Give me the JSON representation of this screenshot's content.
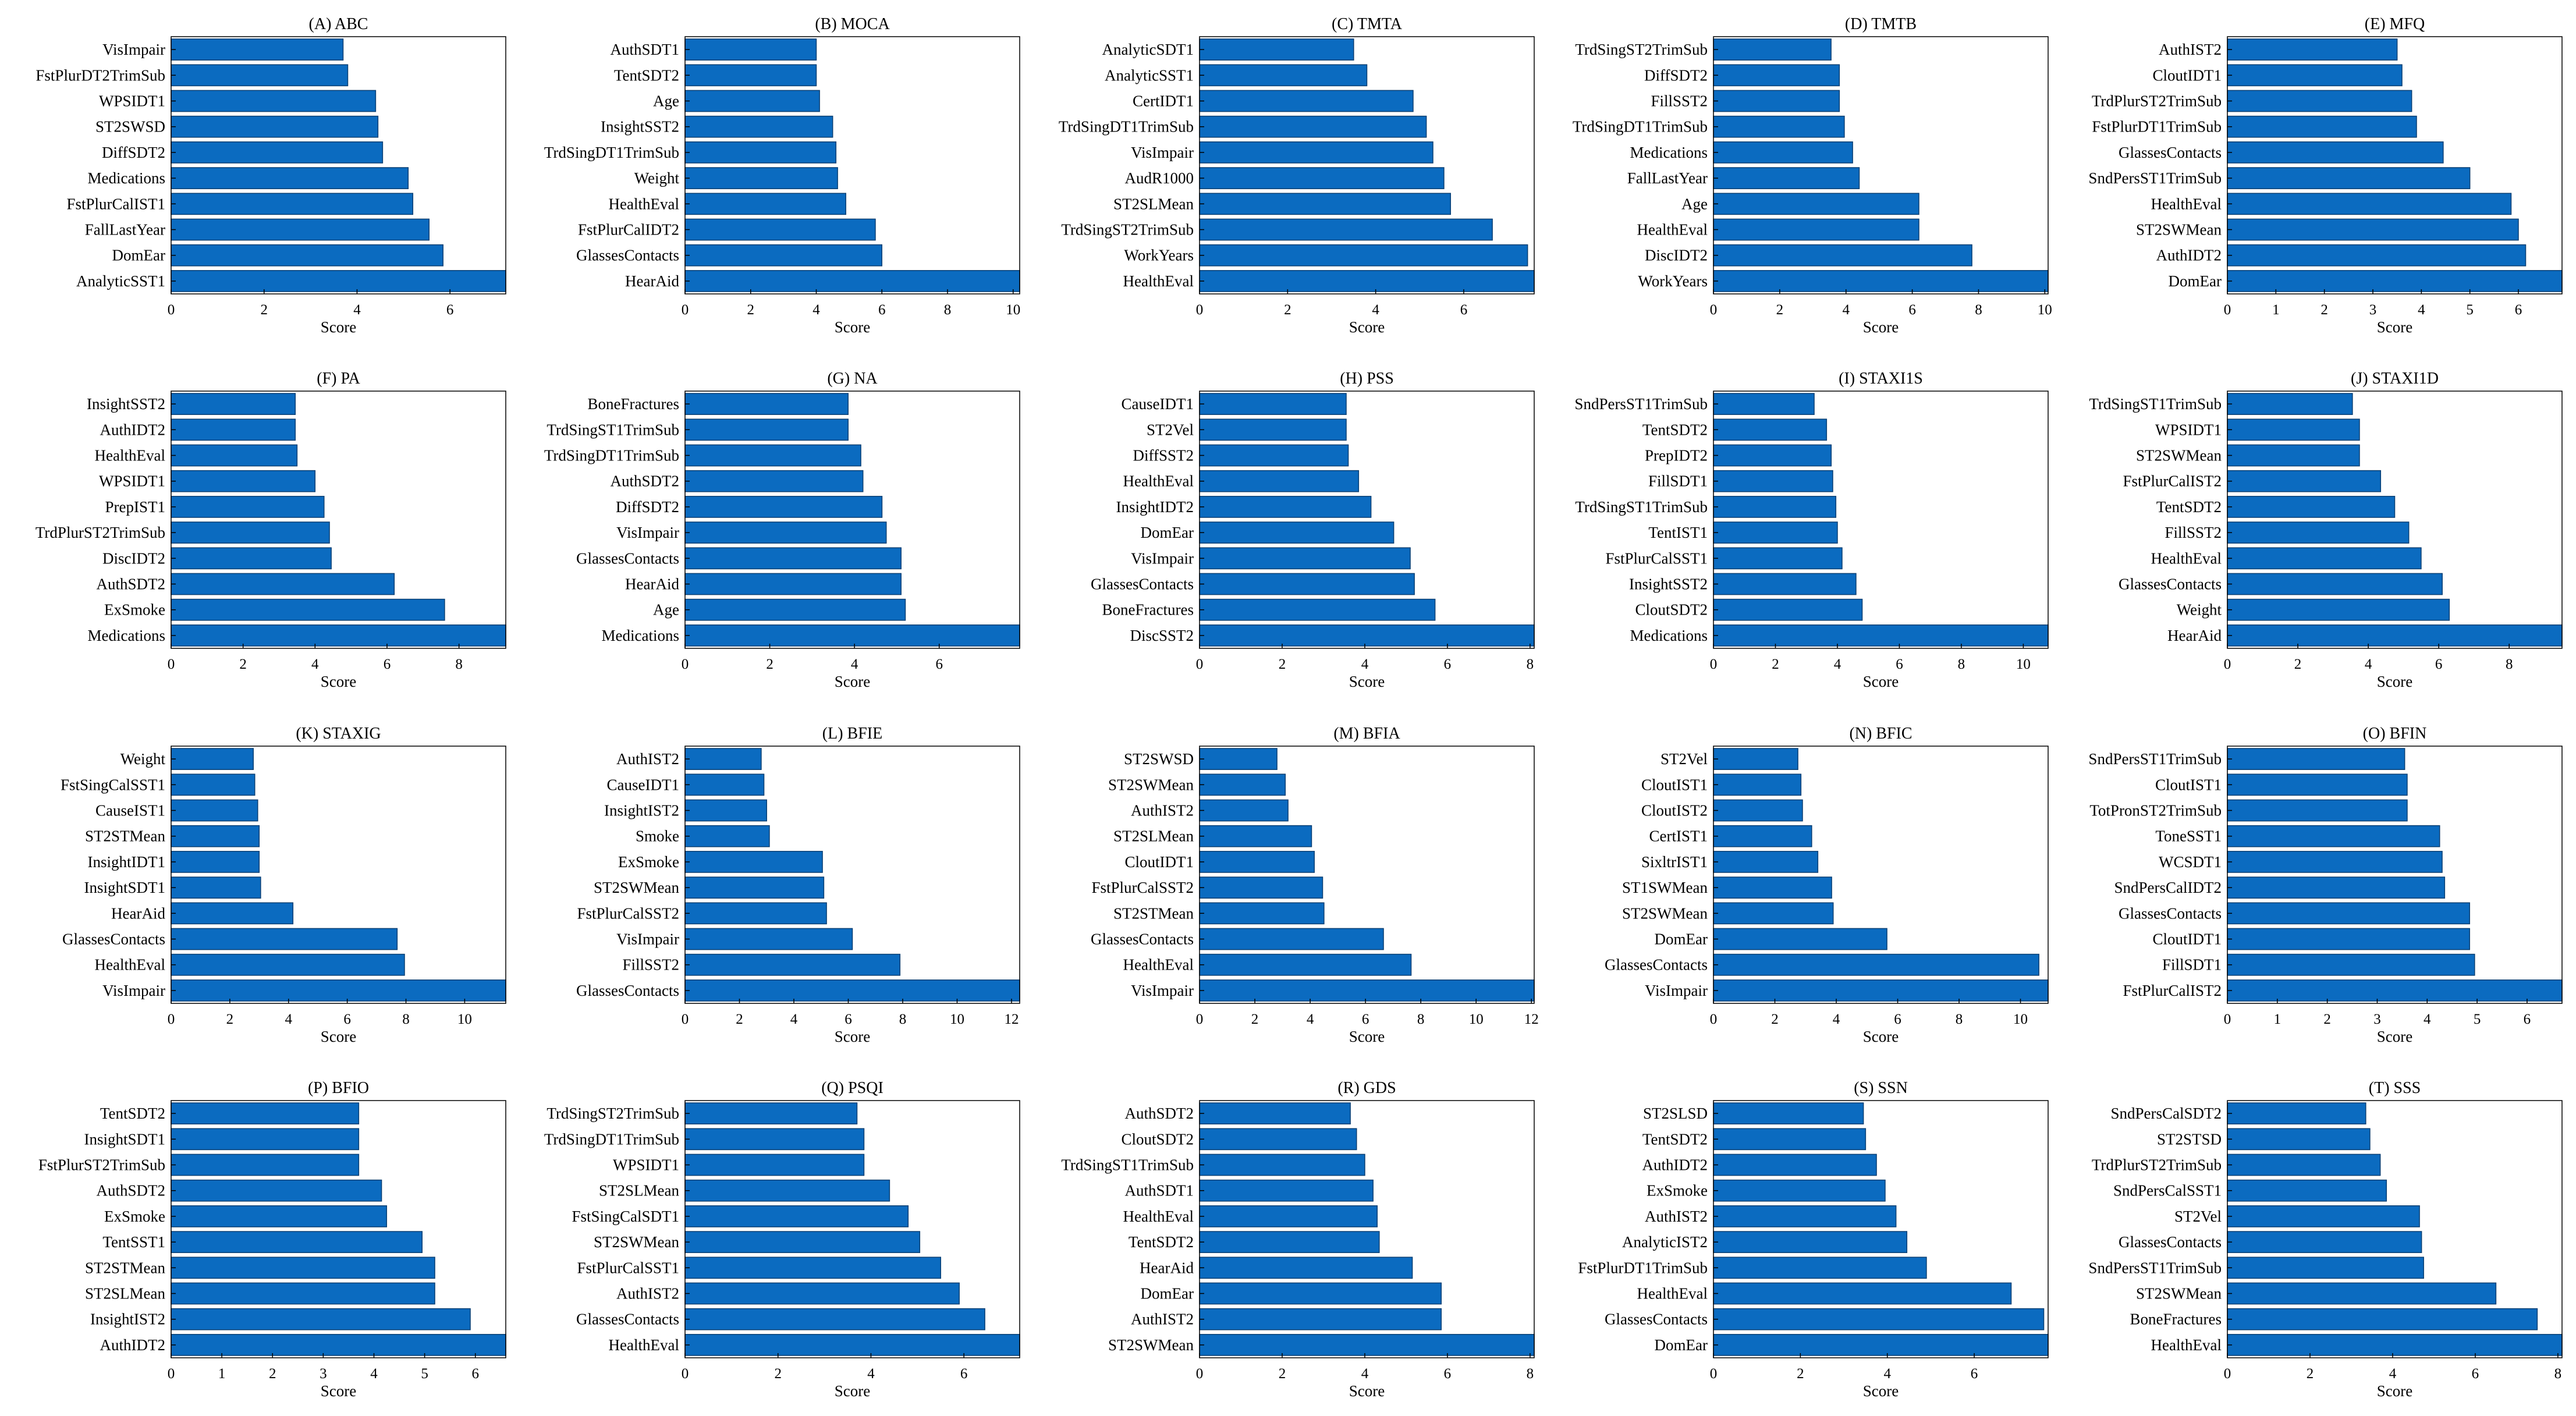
{
  "chart_data": [
    {
      "title": "(A) ABC",
      "type": "bar",
      "orientation": "horizontal",
      "xlabel": "Score",
      "xlim": [
        0,
        7.2
      ],
      "xticks": [
        0,
        2,
        4,
        6
      ],
      "categories": [
        "AnalyticSST1",
        "DomEar",
        "FallLastYear",
        "FstPlurCalIST1",
        "Medications",
        "DiffSDT2",
        "ST2SWSD",
        "WPSIDT1",
        "FstPlurDT2TrimSub",
        "VisImpair"
      ],
      "values": [
        7.2,
        5.85,
        5.55,
        5.2,
        5.1,
        4.55,
        4.45,
        4.4,
        3.8,
        3.7
      ]
    },
    {
      "title": "(B) MOCA",
      "type": "bar",
      "orientation": "horizontal",
      "xlabel": "Score",
      "xlim": [
        0,
        10.2
      ],
      "xticks": [
        0,
        2,
        4,
        6,
        8,
        10
      ],
      "categories": [
        "HearAid",
        "GlassesContacts",
        "FstPlurCalIDT2",
        "HealthEval",
        "Weight",
        "TrdSingDT1TrimSub",
        "InsightSST2",
        "Age",
        "TentSDT2",
        "AuthSDT1"
      ],
      "values": [
        10.2,
        6.0,
        5.8,
        4.9,
        4.65,
        4.6,
        4.5,
        4.1,
        4.0,
        4.0
      ]
    },
    {
      "title": "(C) TMTA",
      "type": "bar",
      "orientation": "horizontal",
      "xlabel": "Score",
      "xlim": [
        0,
        7.6
      ],
      "xticks": [
        0,
        2,
        4,
        6
      ],
      "categories": [
        "HealthEval",
        "WorkYears",
        "TrdSingST2TrimSub",
        "ST2SLMean",
        "AudR1000",
        "VisImpair",
        "TrdSingDT1TrimSub",
        "CertIDT1",
        "AnalyticSST1",
        "AnalyticSDT1"
      ],
      "values": [
        7.6,
        7.45,
        6.65,
        5.7,
        5.55,
        5.3,
        5.15,
        4.85,
        3.8,
        3.5
      ]
    },
    {
      "title": "(D) TMTB",
      "type": "bar",
      "orientation": "horizontal",
      "xlabel": "Score",
      "xlim": [
        0,
        10.1
      ],
      "xticks": [
        0,
        2,
        4,
        6,
        8,
        10
      ],
      "categories": [
        "WorkYears",
        "DiscIDT2",
        "HealthEval",
        "Age",
        "FallLastYear",
        "Medications",
        "TrdSingDT1TrimSub",
        "FillSST2",
        "DiffSDT2",
        "TrdSingST2TrimSub"
      ],
      "values": [
        10.1,
        7.8,
        6.2,
        6.2,
        4.4,
        4.2,
        3.95,
        3.8,
        3.8,
        3.55
      ]
    },
    {
      "title": "(E) MFQ",
      "type": "bar",
      "orientation": "horizontal",
      "xlabel": "Score",
      "xlim": [
        0,
        6.9
      ],
      "xticks": [
        0,
        1,
        2,
        3,
        4,
        5,
        6
      ],
      "categories": [
        "DomEar",
        "AuthIDT2",
        "ST2SWMean",
        "HealthEval",
        "SndPersST1TrimSub",
        "GlassesContacts",
        "FstPlurDT1TrimSub",
        "TrdPlurST2TrimSub",
        "CloutIDT1",
        "AuthIST2"
      ],
      "values": [
        6.9,
        6.15,
        6.0,
        5.85,
        5.0,
        4.45,
        3.9,
        3.8,
        3.6,
        3.5
      ]
    },
    {
      "title": "(F) PA",
      "type": "bar",
      "orientation": "horizontal",
      "xlabel": "Score",
      "xlim": [
        0,
        9.3
      ],
      "xticks": [
        0,
        2,
        4,
        6,
        8
      ],
      "categories": [
        "Medications",
        "ExSmoke",
        "AuthSDT2",
        "DiscIDT2",
        "TrdPlurST2TrimSub",
        "PrepIST1",
        "WPSIDT1",
        "HealthEval",
        "AuthIDT2",
        "InsightSST2"
      ],
      "values": [
        9.3,
        7.6,
        6.2,
        4.45,
        4.4,
        4.25,
        4.0,
        3.5,
        3.45,
        3.45
      ]
    },
    {
      "title": "(G) NA",
      "type": "bar",
      "orientation": "horizontal",
      "xlabel": "Score",
      "xlim": [
        0,
        7.9
      ],
      "xticks": [
        0,
        2,
        4,
        6
      ],
      "categories": [
        "Medications",
        "Age",
        "HearAid",
        "GlassesContacts",
        "VisImpair",
        "DiffSDT2",
        "AuthSDT2",
        "TrdSingDT1TrimSub",
        "TrdSingST1TrimSub",
        "BoneFractures"
      ],
      "values": [
        7.9,
        5.2,
        5.1,
        5.1,
        4.75,
        4.65,
        4.2,
        4.15,
        3.85,
        3.85
      ]
    },
    {
      "title": "(H) PSS",
      "type": "bar",
      "orientation": "horizontal",
      "xlabel": "Score",
      "xlim": [
        0,
        8.1
      ],
      "xticks": [
        0,
        2,
        4,
        6,
        8
      ],
      "categories": [
        "DiscSST2",
        "BoneFractures",
        "GlassesContacts",
        "VisImpair",
        "DomEar",
        "InsightIDT2",
        "HealthEval",
        "DiffSST2",
        "ST2Vel",
        "CauseIDT1"
      ],
      "values": [
        8.1,
        5.7,
        5.2,
        5.1,
        4.7,
        4.15,
        3.85,
        3.6,
        3.55,
        3.55
      ]
    },
    {
      "title": "(I) STAXI1S",
      "type": "bar",
      "orientation": "horizontal",
      "xlabel": "Score",
      "xlim": [
        0,
        10.8
      ],
      "xticks": [
        0,
        2,
        4,
        6,
        8,
        10
      ],
      "categories": [
        "Medications",
        "CloutSDT2",
        "InsightSST2",
        "FstPlurCalSST1",
        "TentIST1",
        "TrdSingST1TrimSub",
        "FillSDT1",
        "PrepIDT2",
        "TentSDT2",
        "SndPersST1TrimSub"
      ],
      "values": [
        10.8,
        4.8,
        4.6,
        4.15,
        4.0,
        3.95,
        3.85,
        3.8,
        3.65,
        3.25
      ]
    },
    {
      "title": "(J) STAXI1D",
      "type": "bar",
      "orientation": "horizontal",
      "xlabel": "Score",
      "xlim": [
        0,
        9.5
      ],
      "xticks": [
        0,
        2,
        4,
        6,
        8
      ],
      "categories": [
        "HearAid",
        "Weight",
        "GlassesContacts",
        "HealthEval",
        "FillSST2",
        "TentSDT2",
        "FstPlurCalIST2",
        "ST2SWMean",
        "WPSIDT1",
        "TrdSingST1TrimSub"
      ],
      "values": [
        9.5,
        6.3,
        6.1,
        5.5,
        5.15,
        4.75,
        4.35,
        3.75,
        3.75,
        3.55
      ]
    },
    {
      "title": "(K) STAXIG",
      "type": "bar",
      "orientation": "horizontal",
      "xlabel": "Score",
      "xlim": [
        0,
        11.4
      ],
      "xticks": [
        0,
        2,
        4,
        6,
        8,
        10
      ],
      "categories": [
        "VisImpair",
        "HealthEval",
        "GlassesContacts",
        "HearAid",
        "InsightSDT1",
        "InsightIDT1",
        "ST2STMean",
        "CauseIST1",
        "FstSingCalSST1",
        "Weight"
      ],
      "values": [
        11.4,
        7.95,
        7.7,
        4.15,
        3.05,
        3.0,
        3.0,
        2.95,
        2.85,
        2.8
      ]
    },
    {
      "title": "(L) BFIE",
      "type": "bar",
      "orientation": "horizontal",
      "xlabel": "Score",
      "xlim": [
        0,
        12.3
      ],
      "xticks": [
        0,
        2,
        4,
        6,
        8,
        10,
        12
      ],
      "categories": [
        "GlassesContacts",
        "FillSST2",
        "VisImpair",
        "FstPlurCalSST2",
        "ST2SWMean",
        "ExSmoke",
        "Smoke",
        "InsightIST2",
        "CauseIDT1",
        "AuthIST2"
      ],
      "values": [
        12.3,
        7.9,
        6.15,
        5.2,
        5.1,
        5.05,
        3.1,
        3.0,
        2.9,
        2.8
      ]
    },
    {
      "title": "(M) BFIA",
      "type": "bar",
      "orientation": "horizontal",
      "xlabel": "Score",
      "xlim": [
        0,
        12.1
      ],
      "xticks": [
        0,
        2,
        4,
        6,
        8,
        10,
        12
      ],
      "categories": [
        "VisImpair",
        "HealthEval",
        "GlassesContacts",
        "ST2STMean",
        "FstPlurCalSST2",
        "CloutIDT1",
        "ST2SLMean",
        "AuthIST2",
        "ST2SWMean",
        "ST2SWSD"
      ],
      "values": [
        12.1,
        7.65,
        6.65,
        4.5,
        4.45,
        4.15,
        4.05,
        3.2,
        3.1,
        2.8
      ]
    },
    {
      "title": "(N) BFIC",
      "type": "bar",
      "orientation": "horizontal",
      "xlabel": "Score",
      "xlim": [
        0,
        10.9
      ],
      "xticks": [
        0,
        2,
        4,
        6,
        8,
        10
      ],
      "categories": [
        "VisImpair",
        "GlassesContacts",
        "DomEar",
        "ST2SWMean",
        "ST1SWMean",
        "SixltrIST1",
        "CertIST1",
        "CloutIST2",
        "CloutIST1",
        "ST2Vel"
      ],
      "values": [
        10.9,
        10.6,
        5.65,
        3.9,
        3.85,
        3.4,
        3.2,
        2.9,
        2.85,
        2.75
      ]
    },
    {
      "title": "(O) BFIN",
      "type": "bar",
      "orientation": "horizontal",
      "xlabel": "Score",
      "xlim": [
        0,
        6.7
      ],
      "xticks": [
        0,
        1,
        2,
        3,
        4,
        5,
        6
      ],
      "categories": [
        "FstPlurCalIST2",
        "FillSDT1",
        "CloutIDT1",
        "GlassesContacts",
        "SndPersCalIDT2",
        "WCSDT1",
        "ToneSST1",
        "TotPronST2TrimSub",
        "CloutIST1",
        "SndPersST1TrimSub"
      ],
      "values": [
        6.7,
        4.95,
        4.85,
        4.85,
        4.35,
        4.3,
        4.25,
        3.6,
        3.6,
        3.55
      ]
    },
    {
      "title": "(P) BFIO",
      "type": "bar",
      "orientation": "horizontal",
      "xlabel": "Score",
      "xlim": [
        0,
        6.6
      ],
      "xticks": [
        0,
        1,
        2,
        3,
        4,
        5,
        6
      ],
      "categories": [
        "AuthIDT2",
        "InsightIST2",
        "ST2SLMean",
        "ST2STMean",
        "TentSST1",
        "ExSmoke",
        "AuthSDT2",
        "FstPlurST2TrimSub",
        "InsightSDT1",
        "TentSDT2"
      ],
      "values": [
        6.6,
        5.9,
        5.2,
        5.2,
        4.95,
        4.25,
        4.15,
        3.7,
        3.7,
        3.7
      ]
    },
    {
      "title": "(Q) PSQI",
      "type": "bar",
      "orientation": "horizontal",
      "xlabel": "Score",
      "xlim": [
        0,
        7.2
      ],
      "xticks": [
        0,
        2,
        4,
        6
      ],
      "categories": [
        "HealthEval",
        "GlassesContacts",
        "AuthIST2",
        "FstPlurCalSST1",
        "ST2SWMean",
        "FstSingCalSDT1",
        "ST2SLMean",
        "WPSIDT1",
        "TrdSingDT1TrimSub",
        "TrdSingST2TrimSub"
      ],
      "values": [
        7.2,
        6.45,
        5.9,
        5.5,
        5.05,
        4.8,
        4.4,
        3.85,
        3.85,
        3.7
      ]
    },
    {
      "title": "(R) GDS",
      "type": "bar",
      "orientation": "horizontal",
      "xlabel": "Score",
      "xlim": [
        0,
        8.1
      ],
      "xticks": [
        0,
        2,
        4,
        6,
        8
      ],
      "categories": [
        "ST2SWMean",
        "AuthIST2",
        "DomEar",
        "HearAid",
        "TentSDT2",
        "HealthEval",
        "AuthSDT1",
        "TrdSingST1TrimSub",
        "CloutSDT2",
        "AuthSDT2"
      ],
      "values": [
        8.1,
        5.85,
        5.85,
        5.15,
        4.35,
        4.3,
        4.2,
        4.0,
        3.8,
        3.65
      ]
    },
    {
      "title": "(S) SSN",
      "type": "bar",
      "orientation": "horizontal",
      "xlabel": "Score",
      "xlim": [
        0,
        7.7
      ],
      "xticks": [
        0,
        2,
        4,
        6
      ],
      "categories": [
        "DomEar",
        "GlassesContacts",
        "HealthEval",
        "FstPlurDT1TrimSub",
        "AnalyticIST2",
        "AuthIST2",
        "ExSmoke",
        "AuthIDT2",
        "TentSDT2",
        "ST2SLSD"
      ],
      "values": [
        7.7,
        7.6,
        6.85,
        4.9,
        4.45,
        4.2,
        3.95,
        3.75,
        3.5,
        3.45
      ]
    },
    {
      "title": "(T) SSS",
      "type": "bar",
      "orientation": "horizontal",
      "xlabel": "Score",
      "xlim": [
        0,
        8.1
      ],
      "xticks": [
        0,
        2,
        4,
        6,
        8
      ],
      "categories": [
        "HealthEval",
        "BoneFractures",
        "ST2SWMean",
        "SndPersST1TrimSub",
        "GlassesContacts",
        "ST2Vel",
        "SndPersCalSST1",
        "TrdPlurST2TrimSub",
        "ST2STSD",
        "SndPersCalSDT2"
      ],
      "values": [
        8.1,
        7.5,
        6.5,
        4.75,
        4.7,
        4.65,
        3.85,
        3.7,
        3.45,
        3.35
      ]
    }
  ]
}
